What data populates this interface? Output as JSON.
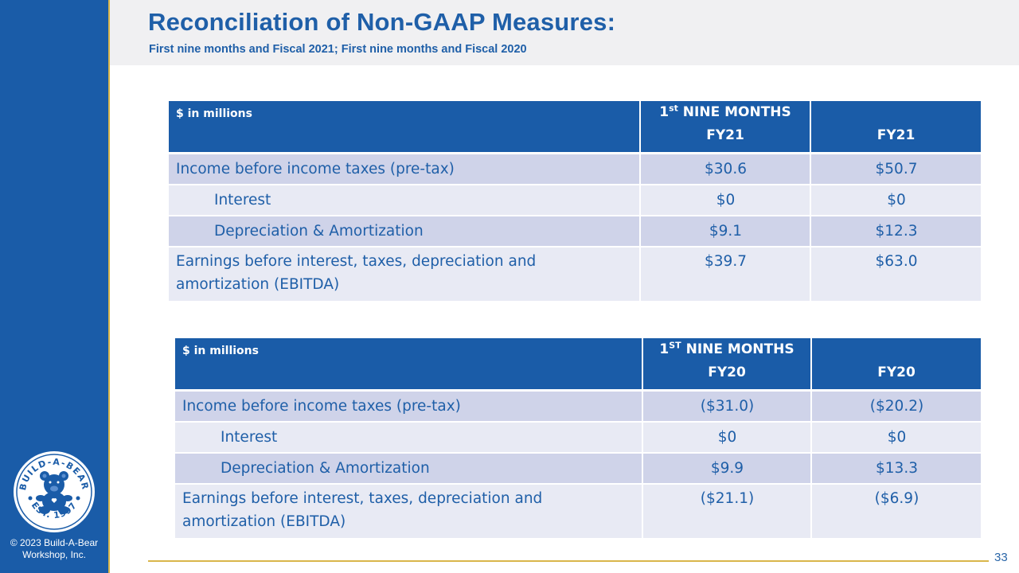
{
  "header": {
    "title": "Reconciliation of Non-GAAP Measures:",
    "subtitle": "First nine months and Fiscal 2021; First nine months and Fiscal 2020"
  },
  "sidebar": {
    "logo": {
      "top_text": "BUILD-A-BEAR",
      "bottom_text": "EST. 1997",
      "icon": "bear-logo-icon"
    },
    "copyright_line1": "© 2023 Build-A-Bear",
    "copyright_line2": "Workshop, Inc."
  },
  "footer": {
    "page_number": "33"
  },
  "colors": {
    "brand_blue": "#1a5ca8",
    "accent_gold": "#d9b64a",
    "row_dark": "#cfd3e9",
    "row_light": "#e8eaf4",
    "text_blue": "#1f5fa8"
  },
  "table_fy21": {
    "units": "$ in millions",
    "col1_prefix": "1",
    "col1_sup": "st",
    "col1_line1": "NINE MONTHS",
    "col1_line2": "FY21",
    "col2": "FY21",
    "rows": [
      {
        "label": "Income before income taxes (pre-tax)",
        "v1": "$30.6",
        "v2": "$50.7"
      },
      {
        "label": "Interest",
        "v1": "$0",
        "v2": "$0"
      },
      {
        "label": "Depreciation & Amortization",
        "v1": "$9.1",
        "v2": "$12.3"
      },
      {
        "label_line1": "Earnings before interest, taxes, depreciation and",
        "label_line2": "amortization (EBITDA)",
        "v1": "$39.7",
        "v2": "$63.0"
      }
    ]
  },
  "table_fy20": {
    "units": "$ in millions",
    "col1_prefix": "1",
    "col1_sup": "ST",
    "col1_line1": "NINE MONTHS",
    "col1_line2": "FY20",
    "col2": "FY20",
    "rows": [
      {
        "label": "Income before income taxes (pre-tax)",
        "v1": "($31.0)",
        "v2": "($20.2)"
      },
      {
        "label": "Interest",
        "v1": "$0",
        "v2": "$0"
      },
      {
        "label": "Depreciation & Amortization",
        "v1": "$9.9",
        "v2": "$13.3"
      },
      {
        "label_line1": "Earnings before interest, taxes, depreciation and",
        "label_line2": "amortization (EBITDA)",
        "v1": "($21.1)",
        "v2": "($6.9)"
      }
    ]
  }
}
